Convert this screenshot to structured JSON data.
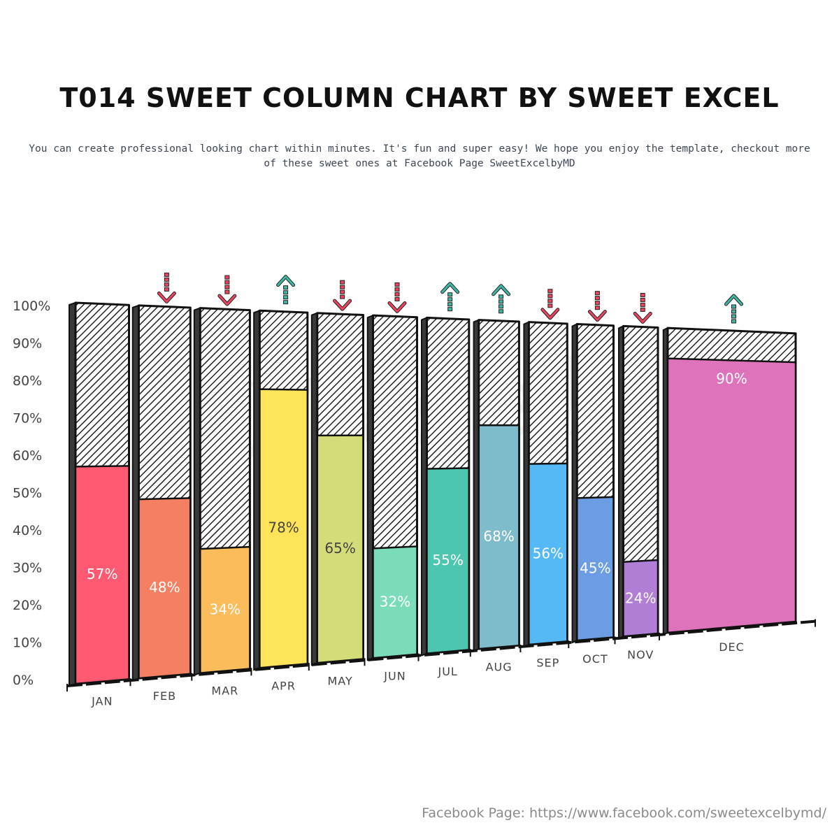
{
  "title": "T014 SWEET COLUMN CHART BY SWEET EXCEL",
  "subtitle": "You can create professional looking chart within minutes. It's fun and super easy! We hope you enjoy the template, checkout more of these sweet ones at Facebook Page SweetExcelbyMD",
  "footer": "Facebook Page: https://www.facebook.com/sweetexcelbymd/",
  "chart_data": {
    "type": "bar",
    "categories": [
      "JAN",
      "FEB",
      "MAR",
      "APR",
      "MAY",
      "JUN",
      "JUL",
      "AUG",
      "SEP",
      "OCT",
      "NOV",
      "DEC"
    ],
    "values": [
      57,
      48,
      34,
      78,
      65,
      32,
      55,
      68,
      56,
      45,
      24,
      90
    ],
    "labels": [
      "57%",
      "48%",
      "34%",
      "78%",
      "65%",
      "32%",
      "55%",
      "68%",
      "56%",
      "45%",
      "24%",
      "90%"
    ],
    "trend": [
      null,
      "down",
      "down",
      "up",
      "down",
      "down",
      "up",
      "up",
      "down",
      "down",
      "down",
      "up"
    ],
    "ylim": [
      0,
      100
    ],
    "y_ticks": [
      "0%",
      "10%",
      "20%",
      "30%",
      "40%",
      "50%",
      "60%",
      "70%",
      "80%",
      "90%",
      "100%"
    ],
    "background_fill": "hatched to 100%",
    "colors": [
      "#ff5a72",
      "#f47f61",
      "#fbbd5c",
      "#ffe45a",
      "#d4dc7a",
      "#7adcb8",
      "#4dc6b0",
      "#7fbccb",
      "#55b9f5",
      "#6c9de4",
      "#b07fd5",
      "#de72bb"
    ],
    "text_colors": [
      "#ffffff",
      "#ffffff",
      "#ffffff",
      "#444444",
      "#444444",
      "#ffffff",
      "#ffffff",
      "#ffffff",
      "#ffffff",
      "#ffffff",
      "#ffffff",
      "#ffffff"
    ],
    "trend_colors": {
      "up": "#3fb5a3",
      "down": "#e9445f"
    }
  }
}
